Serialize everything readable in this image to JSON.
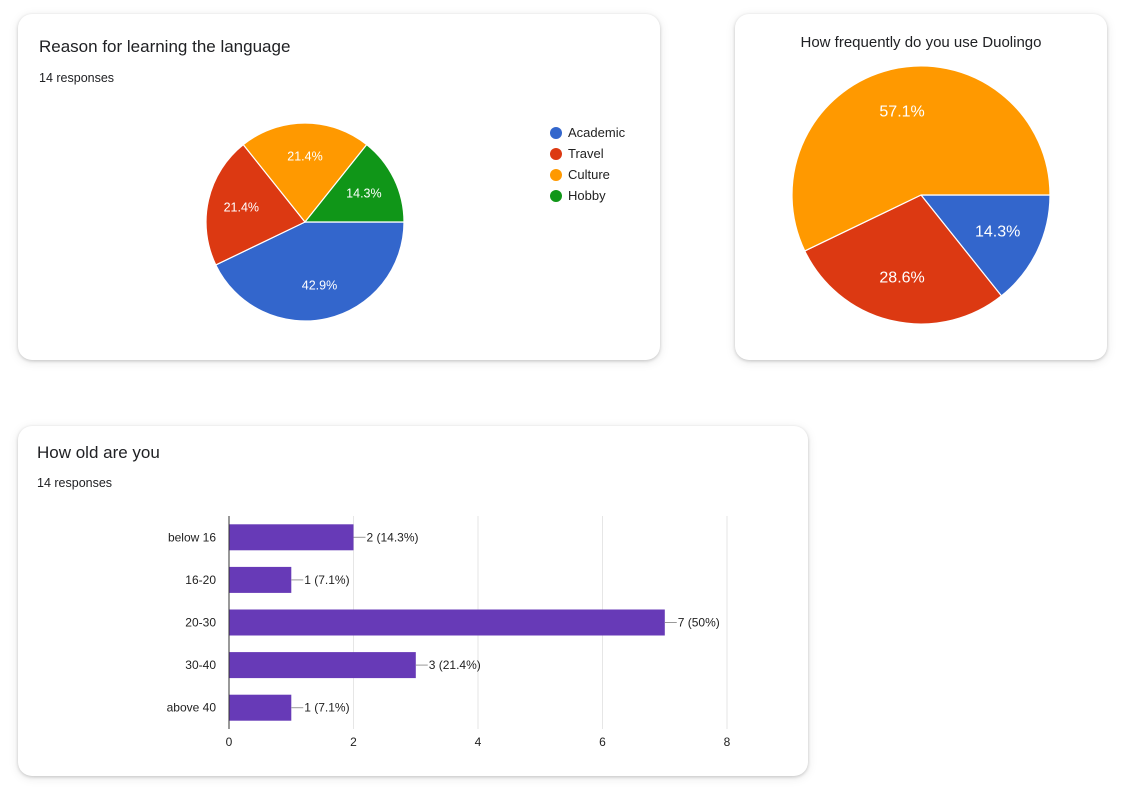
{
  "chart_data": [
    {
      "type": "pie",
      "title": "Reason for learning the language",
      "subtitle": "14 responses",
      "categories": [
        "Academic",
        "Travel",
        "Culture",
        "Hobby"
      ],
      "values": [
        6,
        3,
        3,
        2
      ],
      "labels": [
        "42.9%",
        "21.4%",
        "21.4%",
        "14.3%"
      ],
      "colors": [
        "#3366cc",
        "#dc3912",
        "#ff9900",
        "#109618"
      ],
      "legend": "right"
    },
    {
      "type": "pie",
      "title": "How frequently do you use Duolingo",
      "categories": [
        "",
        "",
        ""
      ],
      "values": [
        2,
        4,
        8
      ],
      "labels": [
        "14.3%",
        "28.6%",
        "57.1%"
      ],
      "colors": [
        "#3366cc",
        "#dc3912",
        "#ff9900"
      ],
      "legend": "none"
    },
    {
      "type": "bar",
      "orientation": "horizontal",
      "title": "How old are you",
      "subtitle": "14 responses",
      "categories": [
        "below 16",
        "16-20",
        "20-30",
        "30-40",
        "above 40"
      ],
      "values": [
        2,
        1,
        7,
        3,
        1
      ],
      "labels": [
        "2 (14.3%)",
        "1 (7.1%)",
        "7 (50%)",
        "3 (21.4%)",
        "1 (7.1%)"
      ],
      "xlim": [
        0,
        8
      ],
      "xticks": [
        "0",
        "2",
        "4",
        "6",
        "8"
      ],
      "grid": true,
      "color": "#673ab7"
    }
  ]
}
